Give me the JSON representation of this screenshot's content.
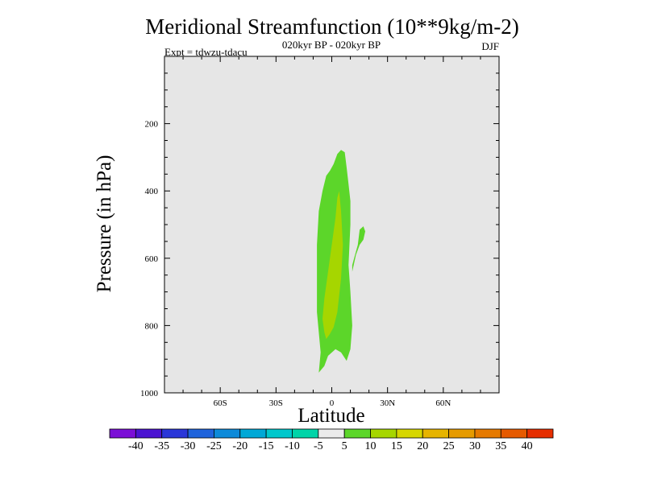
{
  "chart_data": {
    "type": "contour",
    "title": "Meridional Streamfunction (10**9kg/m-2)",
    "subtitle_center": "020kyr BP - 020kyr BP",
    "subtitle_left": "Expt = tdwzu-tdacu",
    "subtitle_right": "DJF",
    "xlabel": "Latitude",
    "ylabel": "Pressure (in hPa)",
    "xlim": [
      -90,
      90
    ],
    "ylim": [
      1000,
      0
    ],
    "y_reversed": true,
    "x_ticks": [
      {
        "value": -60,
        "label": "60S"
      },
      {
        "value": -30,
        "label": "30S"
      },
      {
        "value": 0,
        "label": "0"
      },
      {
        "value": 30,
        "label": "30N"
      },
      {
        "value": 60,
        "label": "60N"
      }
    ],
    "y_ticks": [
      {
        "value": 200,
        "label": "200"
      },
      {
        "value": 400,
        "label": "400"
      },
      {
        "value": 600,
        "label": "600"
      },
      {
        "value": 800,
        "label": "800"
      },
      {
        "value": 1000,
        "label": "1000"
      }
    ],
    "background_color": "#e6e6e6",
    "contour_regions": [
      {
        "range": "5 to 10",
        "color": "#5cd62a",
        "polygon": [
          [
            -7,
            940
          ],
          [
            -4,
            920
          ],
          [
            -2,
            890
          ],
          [
            2,
            870
          ],
          [
            5,
            880
          ],
          [
            8,
            905
          ],
          [
            10,
            870
          ],
          [
            11,
            800
          ],
          [
            10,
            700
          ],
          [
            9,
            620
          ],
          [
            10,
            500
          ],
          [
            10,
            430
          ],
          [
            9,
            380
          ],
          [
            8,
            330
          ],
          [
            7,
            285
          ],
          [
            5,
            278
          ],
          [
            3,
            290
          ],
          [
            1,
            320
          ],
          [
            -1,
            340
          ],
          [
            -3,
            355
          ],
          [
            -5,
            400
          ],
          [
            -7,
            460
          ],
          [
            -8,
            560
          ],
          [
            -8,
            660
          ],
          [
            -8,
            760
          ],
          [
            -7,
            820
          ],
          [
            -6,
            880
          ]
        ]
      },
      {
        "range": "5 to 10",
        "color": "#5cd62a",
        "polygon": [
          [
            11,
            640
          ],
          [
            13,
            590
          ],
          [
            15,
            560
          ],
          [
            17,
            545
          ],
          [
            18,
            520
          ],
          [
            17,
            505
          ],
          [
            15,
            515
          ],
          [
            14,
            560
          ],
          [
            12,
            600
          ],
          [
            11,
            620
          ]
        ]
      },
      {
        "range": "10 to 15",
        "color": "#a6d600",
        "polygon": [
          [
            -5,
            780
          ],
          [
            -4,
            820
          ],
          [
            -3,
            840
          ],
          [
            -1,
            825
          ],
          [
            1,
            805
          ],
          [
            3,
            760
          ],
          [
            5,
            660
          ],
          [
            6,
            560
          ],
          [
            5,
            460
          ],
          [
            4,
            400
          ],
          [
            3,
            420
          ],
          [
            2,
            480
          ],
          [
            0,
            560
          ],
          [
            -2,
            640
          ],
          [
            -4,
            720
          ]
        ]
      }
    ],
    "colorbar": {
      "labels": [
        "-40",
        "-35",
        "-30",
        "-25",
        "-20",
        "-15",
        "-10",
        "-5",
        "5",
        "10",
        "15",
        "20",
        "25",
        "30",
        "35",
        "40"
      ],
      "colors": [
        "#7b0fd6",
        "#4b14d1",
        "#2a36d8",
        "#1f63dc",
        "#0d8ad9",
        "#00a8d6",
        "#00c8cc",
        "#00d4a8",
        "#ebebeb",
        "#5cd62a",
        "#a6d600",
        "#d6d600",
        "#e6b400",
        "#e69b00",
        "#e67a00",
        "#e65a00",
        "#e62e00"
      ]
    }
  }
}
